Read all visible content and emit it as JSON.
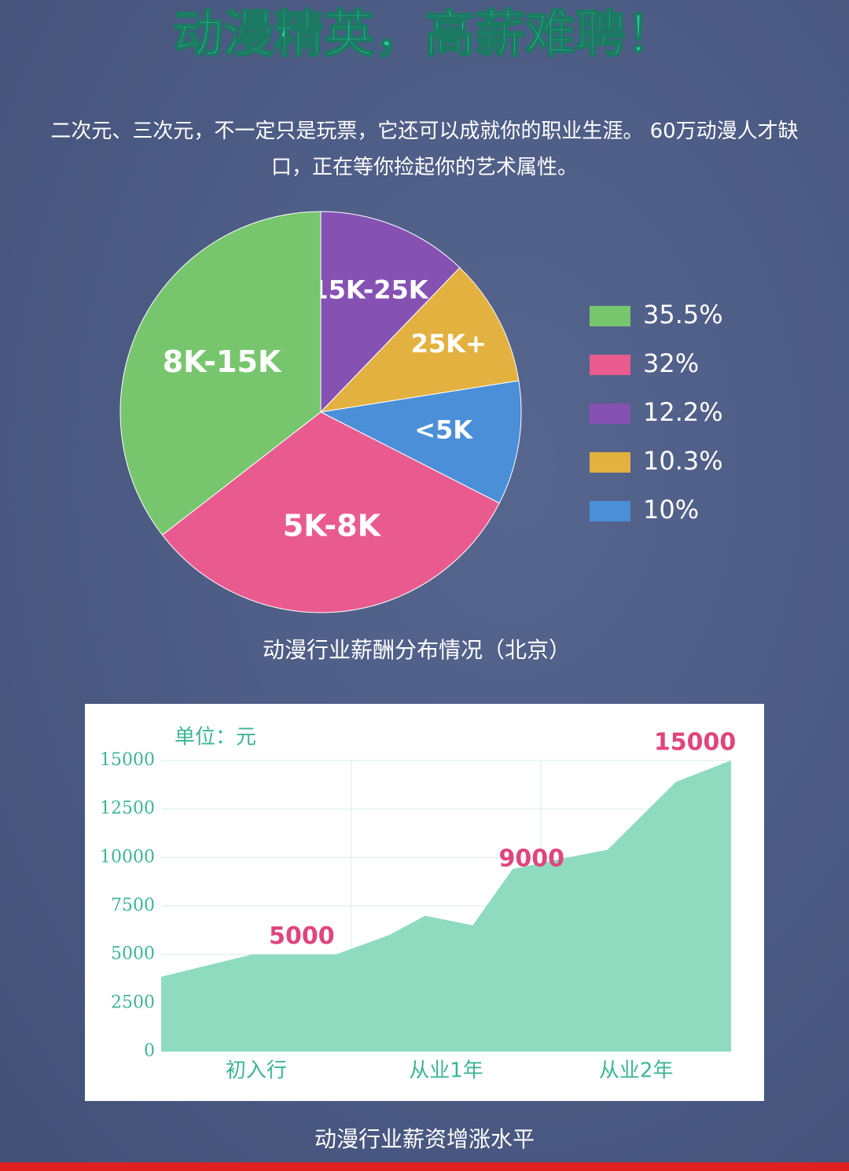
{
  "header": {
    "title": "动漫精英，高薪难聘！",
    "intro": "二次元、三次元，不一定只是玩票，它还可以成就你的职业生涯。 60万动漫人才缺口，正在等你捡起你的艺术属性。"
  },
  "chart_data": [
    {
      "type": "pie",
      "title": "动漫行业薪酬分布情况（北京）",
      "categories": [
        "8K-15K",
        "5K-8K",
        "15K-25K",
        "25K+",
        "<5K"
      ],
      "values": [
        35.5,
        32,
        12.2,
        10.3,
        10
      ],
      "value_labels": [
        "35.5%",
        "32%",
        "12.2%",
        "10.3%",
        "10%"
      ],
      "colors": [
        "#77c66e",
        "#e95b8f",
        "#8552b4",
        "#e3b13f",
        "#4a8fd8"
      ],
      "legend": "right"
    },
    {
      "type": "area",
      "title": "动漫行业薪资增涨水平",
      "y_label": "单位：元",
      "categories": [
        "初入行",
        "从业1年",
        "从业2年"
      ],
      "x": [
        0,
        0.48,
        0.92,
        1.2,
        1.39,
        1.64,
        1.85,
        2.09,
        2.35,
        2.71,
        3
      ],
      "values": [
        3850,
        5000,
        5000,
        6000,
        7000,
        6500,
        9400,
        9900,
        10400,
        13900,
        15000
      ],
      "annotations": [
        {
          "x": 0.74,
          "value": 5000
        },
        {
          "x": 1.95,
          "value": 9000
        },
        {
          "x": 2.81,
          "value": 15000
        }
      ],
      "color": "#8edbc0",
      "xlim": [
        0,
        3
      ],
      "ylim": [
        0,
        15000
      ],
      "yticks": [
        0,
        2500,
        5000,
        7500,
        10000,
        12500,
        15000
      ],
      "grid": true
    }
  ]
}
